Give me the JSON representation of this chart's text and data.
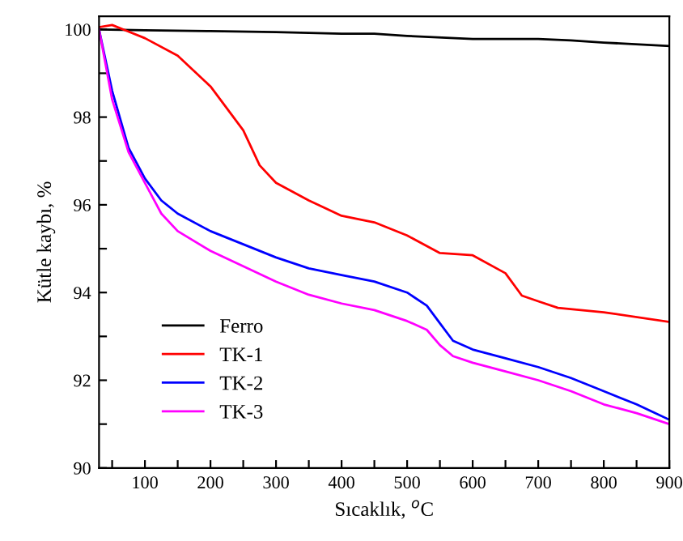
{
  "chart_data": {
    "type": "line",
    "xlabel": "Sıcaklık, $^{o}$C",
    "ylabel": "Kütle kaybı, %",
    "xlim": [
      30,
      900
    ],
    "ylim": [
      90,
      100.3
    ],
    "xticks": [
      {
        "value": 50,
        "label": null
      },
      100,
      {
        "value": 150,
        "label": null
      },
      200,
      {
        "value": 250,
        "label": null
      },
      300,
      {
        "value": 350,
        "label": null
      },
      400,
      {
        "value": 450,
        "label": null
      },
      500,
      {
        "value": 550,
        "label": null
      },
      600,
      {
        "value": 650,
        "label": null
      },
      700,
      {
        "value": 750,
        "label": null
      },
      800,
      {
        "value": 850,
        "label": null
      },
      900
    ],
    "yticks": [
      90,
      {
        "value": 91,
        "label": null
      },
      92,
      {
        "value": 93,
        "label": null
      },
      94,
      {
        "value": 95,
        "label": null
      },
      96,
      {
        "value": 97,
        "label": null
      },
      98,
      {
        "value": 99,
        "label": null
      },
      100
    ],
    "grid": false,
    "legend": "bottom left",
    "line_style": "solid",
    "marker": "none",
    "series": [
      {
        "name": "Ferro",
        "color": "#000000",
        "x": [
          30,
          100,
          200,
          300,
          400,
          450,
          500,
          600,
          700,
          750,
          800,
          900
        ],
        "values": [
          100,
          99.98,
          99.96,
          99.94,
          99.9,
          99.9,
          99.85,
          99.78,
          99.78,
          99.75,
          99.7,
          99.62
        ]
      },
      {
        "name": "TK-1",
        "color": "#ff0000",
        "x": [
          30,
          50,
          75,
          100,
          150,
          200,
          250,
          275,
          300,
          350,
          400,
          450,
          500,
          550,
          600,
          650,
          675,
          700,
          730,
          800,
          900
        ],
        "values": [
          100.05,
          100.1,
          99.95,
          99.8,
          99.4,
          98.7,
          97.7,
          96.9,
          96.5,
          96.1,
          95.75,
          95.6,
          95.3,
          94.9,
          94.85,
          94.44,
          93.93,
          93.8,
          93.65,
          93.55,
          93.33
        ]
      },
      {
        "name": "TK-2",
        "color": "#0000ff",
        "x": [
          30,
          50,
          75,
          100,
          125,
          150,
          200,
          250,
          300,
          350,
          400,
          450,
          500,
          530,
          550,
          570,
          600,
          650,
          700,
          750,
          800,
          850,
          900
        ],
        "values": [
          100,
          98.6,
          97.3,
          96.6,
          96.1,
          95.8,
          95.4,
          95.1,
          94.8,
          94.55,
          94.4,
          94.25,
          94.0,
          93.7,
          93.3,
          92.9,
          92.7,
          92.5,
          92.3,
          92.05,
          91.75,
          91.45,
          91.1
        ]
      },
      {
        "name": "TK-3",
        "color": "#ff00ff",
        "x": [
          30,
          50,
          75,
          100,
          125,
          150,
          200,
          250,
          300,
          350,
          400,
          450,
          500,
          530,
          550,
          570,
          600,
          650,
          700,
          750,
          800,
          850,
          900
        ],
        "values": [
          100,
          98.4,
          97.2,
          96.5,
          95.8,
          95.4,
          94.95,
          94.6,
          94.25,
          93.95,
          93.75,
          93.6,
          93.35,
          93.15,
          92.8,
          92.55,
          92.4,
          92.2,
          92.0,
          91.75,
          91.45,
          91.25,
          91.0
        ]
      }
    ]
  }
}
